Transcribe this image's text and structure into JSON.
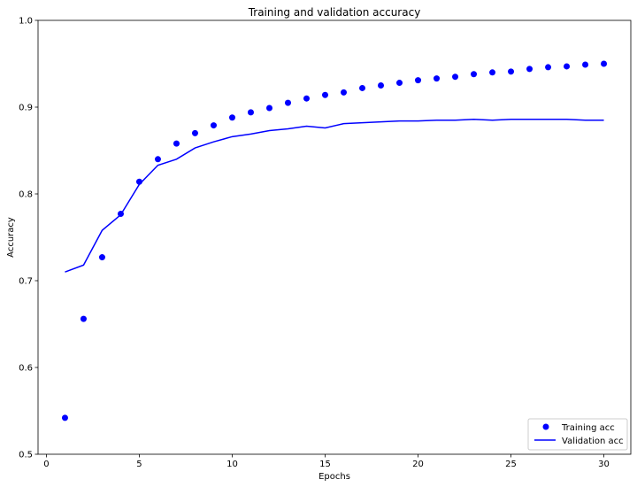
{
  "chart_data": {
    "type": "scatter",
    "title": "Training and validation accuracy",
    "xlabel": "Epochs",
    "ylabel": "Accuracy",
    "xlim": [
      -0.45,
      31.45
    ],
    "ylim": [
      0.5,
      1.0
    ],
    "xticks": [
      0,
      5,
      10,
      15,
      20,
      25,
      30
    ],
    "yticks": [
      0.5,
      0.6,
      0.7,
      0.8,
      0.9,
      1.0
    ],
    "ytick_labels": [
      "0.5",
      "0.6",
      "0.7",
      "0.8",
      "0.9",
      "1.0"
    ],
    "grid": false,
    "legend_position": "lower-right",
    "x": [
      1,
      2,
      3,
      4,
      5,
      6,
      7,
      8,
      9,
      10,
      11,
      12,
      13,
      14,
      15,
      16,
      17,
      18,
      19,
      20,
      21,
      22,
      23,
      24,
      25,
      26,
      27,
      28,
      29,
      30
    ],
    "series": [
      {
        "name": "Training acc",
        "style": "markers",
        "color": "#0000ff",
        "values": [
          0.542,
          0.656,
          0.727,
          0.777,
          0.814,
          0.84,
          0.858,
          0.87,
          0.879,
          0.888,
          0.894,
          0.899,
          0.905,
          0.91,
          0.914,
          0.917,
          0.922,
          0.925,
          0.928,
          0.931,
          0.933,
          0.935,
          0.938,
          0.94,
          0.941,
          0.944,
          0.946,
          0.947,
          0.949,
          0.95
        ]
      },
      {
        "name": "Validation acc",
        "style": "line",
        "color": "#0000ff",
        "values": [
          0.71,
          0.718,
          0.758,
          0.776,
          0.811,
          0.833,
          0.84,
          0.853,
          0.86,
          0.866,
          0.869,
          0.873,
          0.875,
          0.878,
          0.876,
          0.881,
          0.882,
          0.883,
          0.884,
          0.884,
          0.885,
          0.885,
          0.886,
          0.885,
          0.886,
          0.886,
          0.886,
          0.886,
          0.885,
          0.885
        ]
      }
    ]
  }
}
